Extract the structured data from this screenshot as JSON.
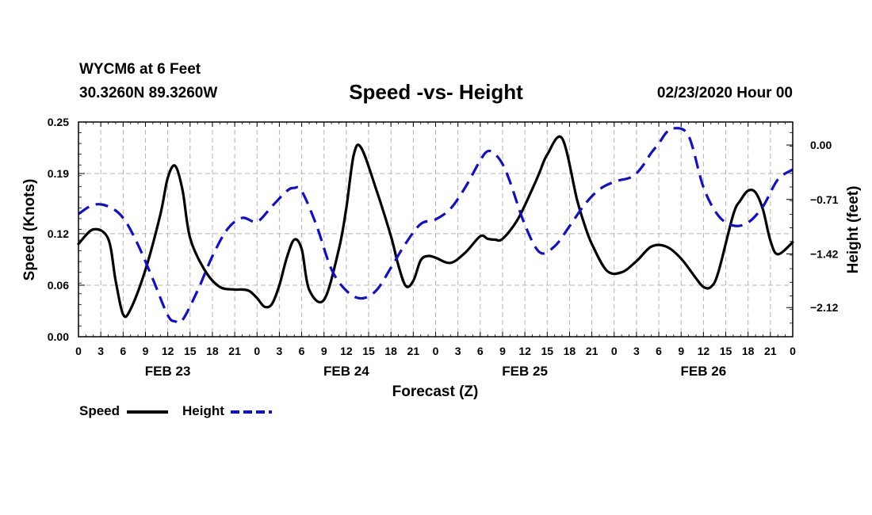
{
  "header": {
    "station": "WYCM6 at 6 Feet",
    "coords": "30.3260N 89.3260W",
    "title": "Speed -vs- Height",
    "datetime": "02/23/2020 Hour 00"
  },
  "legend": {
    "speed_label": "Speed",
    "height_label": "Height"
  },
  "colors": {
    "speed": "#000000",
    "height": "#1010cc",
    "grid": "#b4b4b4"
  },
  "chart_data": {
    "type": "line",
    "title": "Speed -vs- Height",
    "xlabel": "Forecast (Z)",
    "ylabel": "Speed (Knots)",
    "y2label": "Height (feet)",
    "xlim": [
      0,
      96
    ],
    "ylim": [
      0,
      0.25
    ],
    "y2lim": [
      -2.5,
      0.3
    ],
    "yticks": [
      0.0,
      0.06,
      0.12,
      0.19,
      0.25
    ],
    "ytick_labels": [
      "0.00",
      "0.06",
      "0.12",
      "0.19",
      "0.25"
    ],
    "y2ticks": [
      0.0,
      -0.71,
      -1.42,
      -2.12
    ],
    "y2tick_labels": [
      "0.00",
      "−0.71",
      "−1.42",
      "−2.12"
    ],
    "xtick_labels": [
      "0",
      "3",
      "6",
      "9",
      "12",
      "15",
      "18",
      "21",
      "0",
      "3",
      "6",
      "9",
      "12",
      "15",
      "18",
      "21",
      "0",
      "3",
      "6",
      "9",
      "12",
      "15",
      "18",
      "21",
      "0",
      "3",
      "6",
      "9",
      "12",
      "15",
      "18",
      "21",
      "0"
    ],
    "day_labels": [
      "FEB 23",
      "FEB 24",
      "FEB 25",
      "FEB 26"
    ],
    "grid": true,
    "series": [
      {
        "name": "Speed",
        "axis": "left",
        "style": "solid",
        "x": [
          0,
          2,
          4,
          5,
          6,
          7,
          9,
          11,
          12,
          13,
          14,
          15,
          17,
          19,
          21,
          22,
          23,
          24,
          25,
          26,
          27,
          28,
          29,
          30,
          31,
          33,
          35,
          36,
          37,
          38,
          40,
          42,
          43,
          44,
          45,
          46,
          47,
          48,
          50,
          52,
          54,
          55,
          56,
          57,
          59,
          61,
          62,
          63,
          65,
          67,
          68,
          69,
          71,
          73,
          75,
          77,
          79,
          81,
          83,
          84,
          85,
          86,
          88,
          89,
          90,
          91,
          92,
          93,
          94,
          96
        ],
        "y": [
          0.108,
          0.125,
          0.114,
          0.065,
          0.026,
          0.032,
          0.078,
          0.142,
          0.185,
          0.199,
          0.17,
          0.115,
          0.077,
          0.058,
          0.055,
          0.055,
          0.053,
          0.045,
          0.035,
          0.038,
          0.06,
          0.092,
          0.113,
          0.102,
          0.055,
          0.043,
          0.102,
          0.15,
          0.212,
          0.22,
          0.172,
          0.117,
          0.083,
          0.059,
          0.065,
          0.089,
          0.094,
          0.092,
          0.086,
          0.098,
          0.117,
          0.114,
          0.113,
          0.114,
          0.136,
          0.172,
          0.192,
          0.212,
          0.231,
          0.16,
          0.131,
          0.108,
          0.077,
          0.075,
          0.088,
          0.105,
          0.105,
          0.091,
          0.068,
          0.058,
          0.058,
          0.075,
          0.142,
          0.159,
          0.17,
          0.168,
          0.148,
          0.112,
          0.096,
          0.11
        ]
      },
      {
        "name": "Height",
        "axis": "right",
        "style": "dashed",
        "x": [
          0,
          2,
          4,
          6,
          8,
          10,
          12,
          13,
          14,
          16,
          18,
          20,
          22,
          24,
          26,
          28,
          29,
          30,
          32,
          34,
          36,
          38,
          40,
          42,
          44,
          46,
          48,
          50,
          52,
          54,
          55,
          56,
          57,
          58,
          60,
          62,
          64,
          66,
          68,
          70,
          72,
          74,
          75,
          76,
          77,
          78,
          79,
          80,
          82,
          84,
          86,
          88,
          90,
          92,
          94,
          96
        ],
        "y": [
          -0.9,
          -0.78,
          -0.8,
          -0.95,
          -1.3,
          -1.75,
          -2.22,
          -2.3,
          -2.28,
          -1.9,
          -1.45,
          -1.1,
          -0.95,
          -1.0,
          -0.8,
          -0.6,
          -0.56,
          -0.6,
          -1.05,
          -1.62,
          -1.9,
          -2.0,
          -1.9,
          -1.6,
          -1.28,
          -1.03,
          -0.97,
          -0.83,
          -0.55,
          -0.2,
          -0.08,
          -0.12,
          -0.25,
          -0.48,
          -1.04,
          -1.4,
          -1.32,
          -1.06,
          -0.78,
          -0.58,
          -0.48,
          -0.43,
          -0.37,
          -0.25,
          -0.1,
          0.02,
          0.16,
          0.22,
          0.12,
          -0.55,
          -0.92,
          -1.05,
          -1.01,
          -0.8,
          -0.45,
          -0.32
        ]
      }
    ]
  }
}
